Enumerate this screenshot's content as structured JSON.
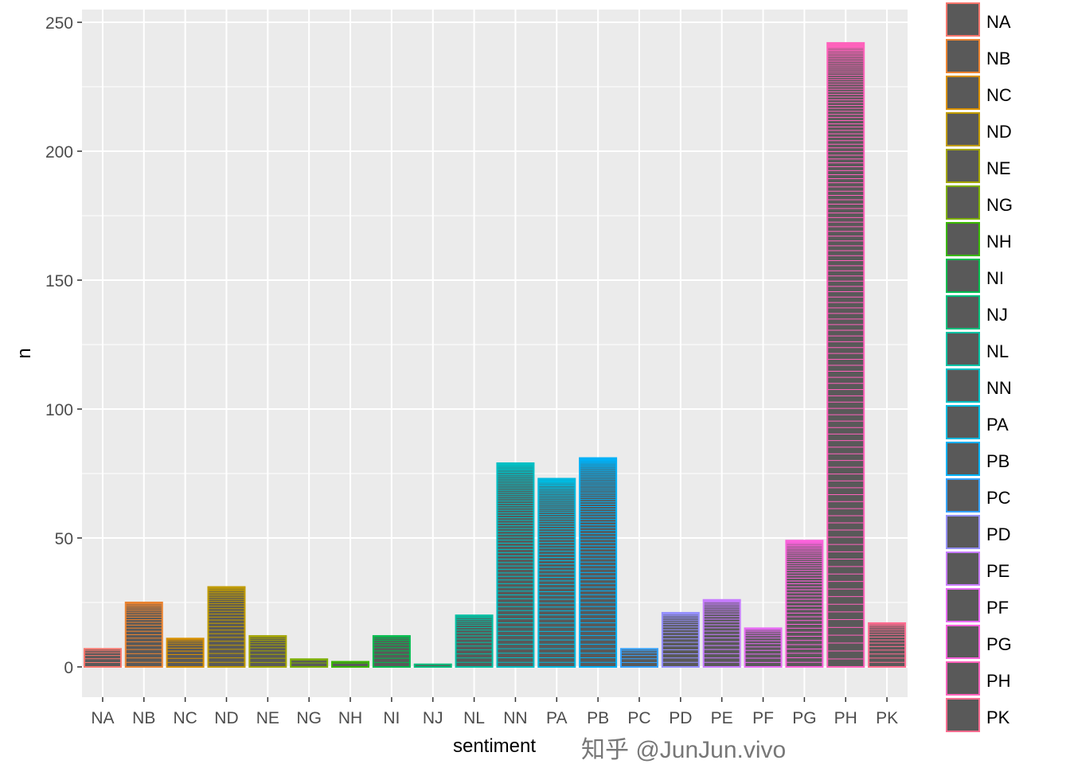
{
  "chart_data": {
    "type": "bar",
    "title": "",
    "xlabel": "sentiment",
    "ylabel": "n",
    "ylim": [
      0,
      250
    ],
    "yticks": [
      0,
      50,
      100,
      150,
      200,
      250
    ],
    "grid": true,
    "legend_position": "right",
    "categories": [
      "NA",
      "NB",
      "NC",
      "ND",
      "NE",
      "NG",
      "NH",
      "NI",
      "NJ",
      "NL",
      "NN",
      "PA",
      "PB",
      "PC",
      "PD",
      "PE",
      "PF",
      "PG",
      "PH",
      "PK"
    ],
    "values": [
      7,
      25,
      11,
      31,
      12,
      3,
      2,
      12,
      1,
      20,
      79,
      73,
      81,
      7,
      21,
      26,
      15,
      49,
      242,
      17
    ],
    "colors": [
      "#F8766D",
      "#EA8331",
      "#D89000",
      "#C09B00",
      "#A3A500",
      "#7CAE00",
      "#39B600",
      "#00BB4E",
      "#00BF7D",
      "#00C1A3",
      "#00BFC4",
      "#00BAE0",
      "#00B0F6",
      "#35A2FF",
      "#9590FF",
      "#C77CFF",
      "#E76BF3",
      "#FA62DB",
      "#FF62BC",
      "#FF6C90"
    ],
    "bar_fill": "#595959",
    "panel_background": "#EBEBEB"
  },
  "watermark": "知乎 @JunJun.vivo"
}
